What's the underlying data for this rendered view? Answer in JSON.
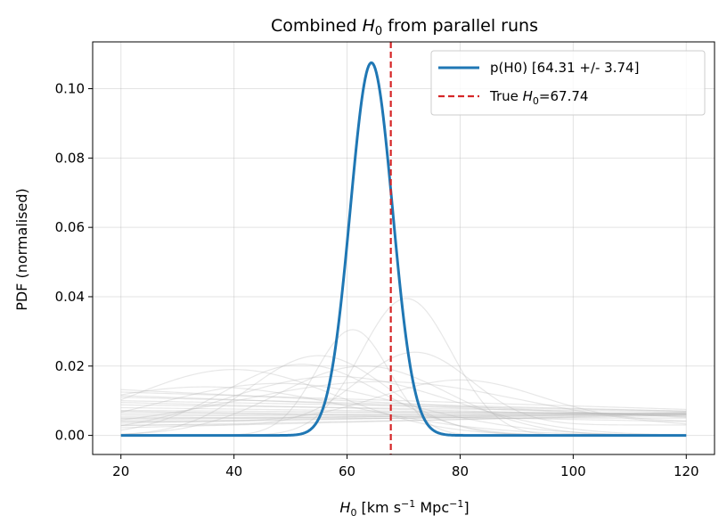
{
  "chart_data": {
    "type": "line",
    "title": "Combined H0 from parallel runs",
    "title_parts": {
      "prefix": "Combined ",
      "var": "H",
      "sub": "0",
      "suffix": " from parallel runs"
    },
    "xlabel_parts": {
      "var": "H",
      "sub": "0",
      "mid": " [km s",
      "sup1": "−1",
      "mid2": " Mpc",
      "sup2": "−1",
      "end": "]"
    },
    "xlabel": "H0 [km s^-1 Mpc^-1]",
    "ylabel": "PDF (normalised)",
    "xlim": [
      15,
      125
    ],
    "ylim": [
      -0.0055,
      0.1135
    ],
    "xticks": [
      20,
      40,
      60,
      80,
      100,
      120
    ],
    "xtick_labels": [
      "20",
      "40",
      "60",
      "80",
      "100",
      "120"
    ],
    "yticks": [
      0.0,
      0.02,
      0.04,
      0.06,
      0.08,
      0.1
    ],
    "ytick_labels": [
      "0.00",
      "0.02",
      "0.04",
      "0.06",
      "0.08",
      "0.10"
    ],
    "grid": true,
    "legend_position": "top-right",
    "series": [
      {
        "name": "p(H0) [64.31 +/- 3.74]",
        "kind": "gaussian",
        "mean": 64.31,
        "sigma": 3.74,
        "peak": 0.1075,
        "x_range": [
          20,
          120
        ],
        "color": "#1f77b4"
      },
      {
        "name": "True H0=67.74",
        "kind": "vline",
        "x": 67.74,
        "color": "#d62728"
      }
    ],
    "legend_entries": [
      {
        "label": "p(H0) [64.31 +/- 3.74]",
        "color": "#1f77b4",
        "style": "solid"
      },
      {
        "label_prefix": "True ",
        "label_var": "H",
        "label_sub": "0",
        "label_suffix": "=67.74",
        "label": "True H0=67.74",
        "color": "#d62728",
        "style": "dashed"
      }
    ],
    "background_runs": {
      "color": "#bbbbbb",
      "opacity": 0.35,
      "runs": [
        {
          "a": 0.0125,
          "b": -5e-05
        },
        {
          "a": 0.0132,
          "b": -8e-05
        },
        {
          "a": 0.011,
          "b": -4e-05
        },
        {
          "a": 0.01,
          "b": -3e-05
        },
        {
          "a": 0.0095,
          "b": -4e-05
        },
        {
          "a": 0.0088,
          "b": -2e-05
        },
        {
          "a": 0.008,
          "b": -2e-05
        },
        {
          "a": 0.0072,
          "b": -1e-05
        },
        {
          "a": 0.0065,
          "b": 0.0
        },
        {
          "a": 0.006,
          "b": 0.0
        },
        {
          "a": 0.0055,
          "b": 1e-05
        },
        {
          "a": 0.005,
          "b": 1e-05
        },
        {
          "a": 0.0045,
          "b": 2e-05
        },
        {
          "a": 0.004,
          "b": 2e-05
        },
        {
          "a": 0.0035,
          "b": 3e-05
        },
        {
          "a": 0.0028,
          "b": 3e-05
        },
        {
          "a": 0.0022,
          "b": 4e-05
        },
        {
          "a": 0.0115,
          "b": -6e-05
        },
        {
          "a": 0.007,
          "b": -3e-05
        },
        {
          "a": 0.005,
          "b": 0.0
        },
        {
          "mu": 70.5,
          "s": 8.0,
          "peak": 0.0395,
          "base": 0.0
        },
        {
          "mu": 61.0,
          "s": 6.5,
          "peak": 0.0305,
          "base": 0.0
        },
        {
          "mu": 55.0,
          "s": 12.0,
          "peak": 0.023,
          "base": 0.0
        },
        {
          "mu": 52.0,
          "s": 14.0,
          "peak": 0.0205,
          "base": 0.0
        },
        {
          "mu": 40.0,
          "s": 18.0,
          "peak": 0.019,
          "base": 0.0
        },
        {
          "mu": 63.0,
          "s": 15.0,
          "peak": 0.02,
          "base": 0.0
        },
        {
          "mu": 58.0,
          "s": 20.0,
          "peak": 0.017,
          "base": 0.0
        },
        {
          "mu": 72.0,
          "s": 10.0,
          "peak": 0.021,
          "base": 0.003
        },
        {
          "mu": 48.0,
          "s": 22.0,
          "peak": 0.015,
          "base": 0.0
        },
        {
          "mu": 66.0,
          "s": 25.0,
          "peak": 0.0135,
          "base": 0.002
        },
        {
          "mu": 35.0,
          "s": 25.0,
          "peak": 0.014,
          "base": 0.0
        },
        {
          "mu": 80.0,
          "s": 14.0,
          "peak": 0.012,
          "base": 0.004
        }
      ]
    }
  }
}
